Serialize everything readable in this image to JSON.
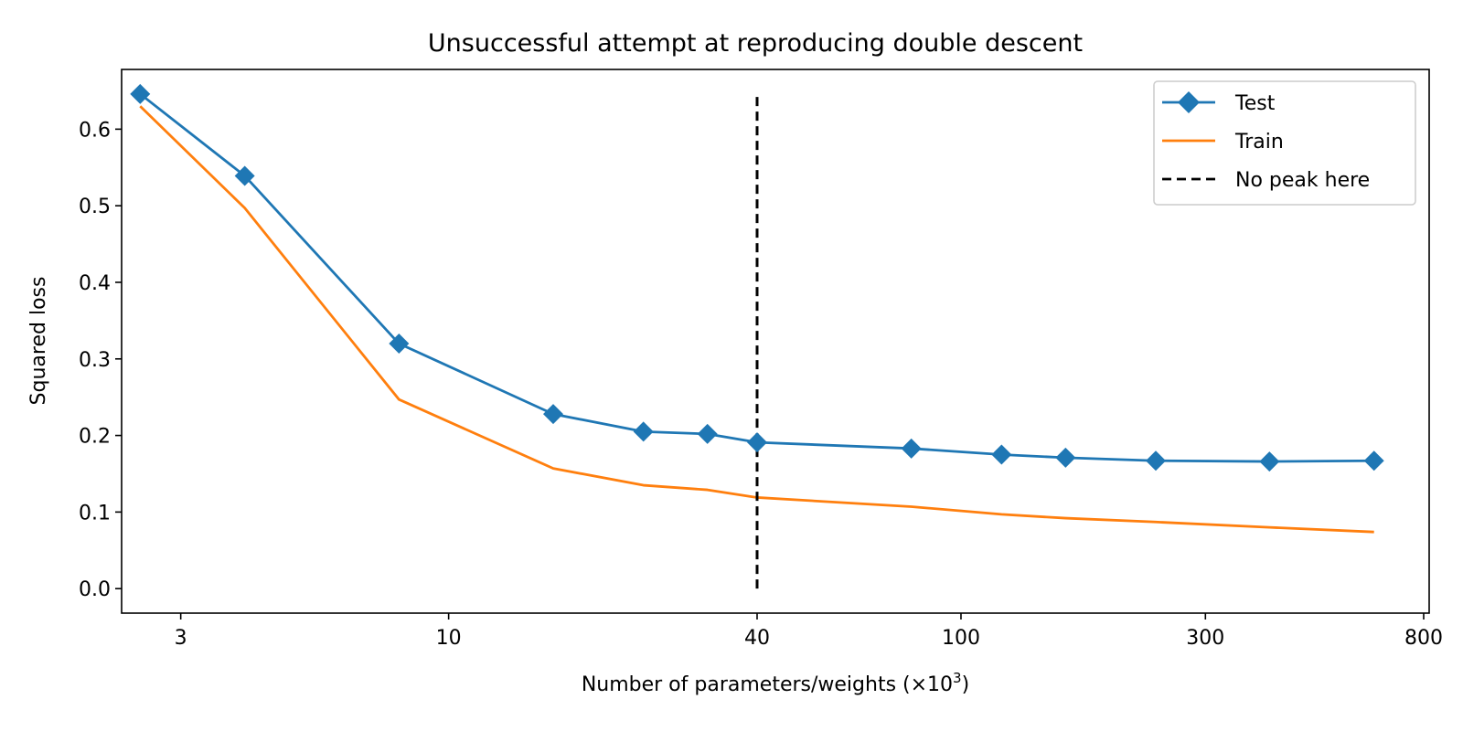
{
  "chart_data": {
    "type": "line",
    "title": "Unsuccessful attempt at reproducing double descent",
    "xlabel": {
      "base": "Number of parameters/weights (×10",
      "exponent": "3",
      "suffix": ")"
    },
    "ylabel": "Squared loss",
    "x_scale": "log",
    "xlim": [
      2.3,
      820
    ],
    "ylim": [
      -0.032,
      0.678
    ],
    "x_ticks": [
      {
        "value": 3,
        "label": "3"
      },
      {
        "value": 10,
        "label": "10"
      },
      {
        "value": 40,
        "label": "40"
      },
      {
        "value": 100,
        "label": "100"
      },
      {
        "value": 300,
        "label": "300"
      },
      {
        "value": 800,
        "label": "800"
      }
    ],
    "y_ticks": [
      {
        "value": 0.0,
        "label": "0.0"
      },
      {
        "value": 0.1,
        "label": "0.1"
      },
      {
        "value": 0.2,
        "label": "0.2"
      },
      {
        "value": 0.3,
        "label": "0.3"
      },
      {
        "value": 0.4,
        "label": "0.4"
      },
      {
        "value": 0.5,
        "label": "0.5"
      },
      {
        "value": 0.6,
        "label": "0.6"
      }
    ],
    "x": [
      2.5,
      4.0,
      8.0,
      16.0,
      24.0,
      32.0,
      40.0,
      80.0,
      120.0,
      160.0,
      240.0,
      400.0,
      640.0
    ],
    "series": [
      {
        "name": "Test",
        "color": "#1f77b4",
        "marker": "diamond",
        "values": [
          0.646,
          0.539,
          0.32,
          0.228,
          0.205,
          0.202,
          0.191,
          0.183,
          0.175,
          0.171,
          0.167,
          0.166,
          0.167
        ]
      },
      {
        "name": "Train",
        "color": "#ff7f0e",
        "marker": "none",
        "values": [
          0.63,
          0.497,
          0.247,
          0.157,
          0.135,
          0.129,
          0.119,
          0.107,
          0.097,
          0.092,
          0.087,
          0.08,
          0.074
        ]
      }
    ],
    "vline": {
      "name": "No peak here",
      "x": 40,
      "y_range": [
        0.0,
        0.646
      ],
      "color": "#000000",
      "style": "dashed"
    },
    "legend_position": "top-right",
    "grid": false
  }
}
